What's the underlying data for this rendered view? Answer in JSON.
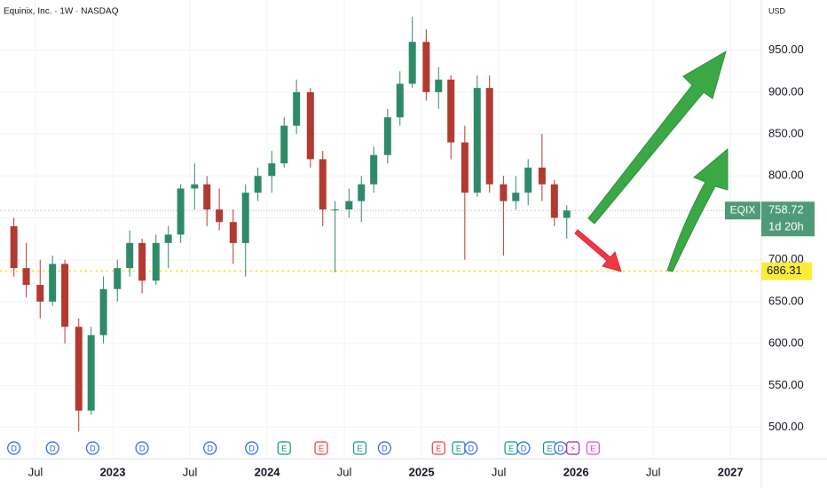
{
  "chart_data": {
    "type": "candlestick",
    "title": "Equinix, Inc. · 1W · NASDAQ",
    "currency": "USD",
    "symbol": "EQIX",
    "last_price": 758.72,
    "countdown": "1d 20h",
    "support_level": 686.31,
    "up_color": "#2f8a68",
    "down_color": "#b23a30",
    "x": [
      2022.36,
      2022.44,
      2022.53,
      2022.61,
      2022.69,
      2022.78,
      2022.86,
      2022.94,
      2023.03,
      2023.11,
      2023.19,
      2023.28,
      2023.36,
      2023.44,
      2023.53,
      2023.61,
      2023.69,
      2023.78,
      2023.86,
      2023.94,
      2024.03,
      2024.11,
      2024.19,
      2024.28,
      2024.36,
      2024.44,
      2024.53,
      2024.61,
      2024.69,
      2024.78,
      2024.86,
      2024.94,
      2025.03,
      2025.11,
      2025.19,
      2025.28,
      2025.36,
      2025.44,
      2025.53,
      2025.61,
      2025.69,
      2025.78,
      2025.86,
      2025.94
    ],
    "open": [
      740,
      690,
      670,
      650,
      695,
      620,
      520,
      610,
      665,
      690,
      720,
      675,
      720,
      730,
      785,
      790,
      760,
      745,
      720,
      780,
      800,
      815,
      860,
      900,
      820,
      760,
      760,
      770,
      790,
      825,
      870,
      910,
      960,
      900,
      915,
      840,
      780,
      905,
      790,
      770,
      780,
      810,
      790,
      750
    ],
    "high": [
      750,
      720,
      700,
      705,
      700,
      630,
      620,
      680,
      700,
      735,
      725,
      730,
      740,
      790,
      815,
      800,
      785,
      760,
      790,
      810,
      830,
      870,
      915,
      905,
      830,
      770,
      785,
      800,
      835,
      880,
      925,
      990,
      975,
      930,
      920,
      860,
      920,
      920,
      800,
      800,
      820,
      850,
      795,
      765
    ],
    "low": [
      680,
      655,
      630,
      645,
      600,
      495,
      515,
      600,
      650,
      680,
      660,
      670,
      690,
      720,
      760,
      740,
      735,
      695,
      680,
      770,
      780,
      810,
      850,
      810,
      740,
      685,
      750,
      745,
      780,
      815,
      860,
      905,
      890,
      880,
      820,
      700,
      775,
      780,
      705,
      760,
      765,
      770,
      740,
      725
    ],
    "close": [
      690,
      670,
      650,
      695,
      620,
      520,
      610,
      665,
      690,
      720,
      675,
      720,
      730,
      785,
      790,
      760,
      745,
      720,
      780,
      800,
      815,
      860,
      900,
      820,
      760,
      760,
      770,
      790,
      825,
      870,
      910,
      960,
      900,
      915,
      840,
      780,
      905,
      790,
      770,
      780,
      810,
      790,
      750,
      758.72
    ],
    "ylim": [
      462.5,
      1010
    ],
    "yticks": [
      {
        "value": 500,
        "label": "500.00"
      },
      {
        "value": 550,
        "label": "550.00"
      },
      {
        "value": 600,
        "label": "600.00"
      },
      {
        "value": 650,
        "label": "650.00"
      },
      {
        "value": 700,
        "label": "700.00"
      },
      {
        "value": 750,
        "label": "750.00"
      },
      {
        "value": 800,
        "label": "800.00"
      },
      {
        "value": 850,
        "label": "850.00"
      },
      {
        "value": 900,
        "label": "900.00"
      },
      {
        "value": 950,
        "label": "950.00"
      }
    ],
    "xlim": [
      2022.27,
      2027.2
    ],
    "xticks": [
      {
        "value": 2022.5,
        "label": "Jul"
      },
      {
        "value": 2023,
        "label": "2023"
      },
      {
        "value": 2023.5,
        "label": "Jul"
      },
      {
        "value": 2024,
        "label": "2024"
      },
      {
        "value": 2024.5,
        "label": "Jul"
      },
      {
        "value": 2025,
        "label": "2025"
      },
      {
        "value": 2025.5,
        "label": "Jul"
      },
      {
        "value": 2026,
        "label": "2026"
      },
      {
        "value": 2026.5,
        "label": "Jul"
      },
      {
        "value": 2027,
        "label": "2027"
      }
    ],
    "events": [
      {
        "x": 2022.36,
        "label": "D",
        "color": "#2962ff"
      },
      {
        "x": 2022.61,
        "label": "D",
        "color": "#2962ff"
      },
      {
        "x": 2022.87,
        "label": "D",
        "color": "#2962ff"
      },
      {
        "x": 2023.19,
        "label": "D",
        "color": "#2962ff"
      },
      {
        "x": 2023.63,
        "label": "D",
        "color": "#2962ff"
      },
      {
        "x": 2023.9,
        "label": "D",
        "color": "#2962ff"
      },
      {
        "x": 2024.11,
        "label": "E",
        "color": "#089981"
      },
      {
        "x": 2024.35,
        "label": "E",
        "color": "#f23645"
      },
      {
        "x": 2024.6,
        "label": "E",
        "color": "#089981"
      },
      {
        "x": 2024.76,
        "label": "D",
        "color": "#2962ff"
      },
      {
        "x": 2025.11,
        "label": "E",
        "color": "#f23645"
      },
      {
        "x": 2025.24,
        "label": "E",
        "color": "#089981"
      },
      {
        "x": 2025.32,
        "label": "D",
        "color": "#2962ff"
      },
      {
        "x": 2025.58,
        "label": "E",
        "color": "#089981"
      },
      {
        "x": 2025.66,
        "label": "D",
        "color": "#2962ff"
      },
      {
        "x": 2025.83,
        "label": "E",
        "color": "#089981"
      },
      {
        "x": 2025.9,
        "label": "D",
        "color": "#2962ff"
      },
      {
        "x": 2025.98,
        "label": "⚡",
        "color": "#9c27b0"
      },
      {
        "x": 2026.11,
        "label": "E",
        "color": "#e040fb"
      }
    ],
    "grid": true
  }
}
